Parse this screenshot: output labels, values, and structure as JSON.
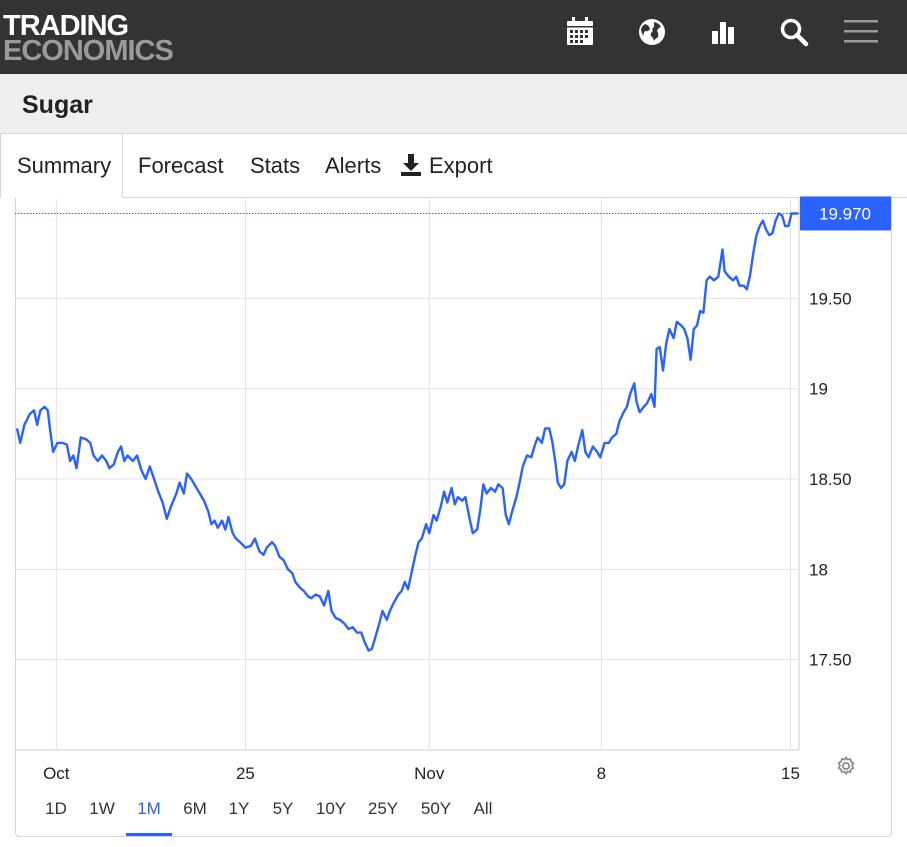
{
  "header": {
    "logo_line1": "TRADING",
    "logo_line2": "ECONOMICS",
    "icons": [
      "calendar-icon",
      "globe-icon",
      "bar-chart-icon",
      "search-icon",
      "menu-icon"
    ]
  },
  "page": {
    "title": "Sugar"
  },
  "tabs": [
    {
      "label": "Summary",
      "active": true
    },
    {
      "label": "Forecast",
      "active": false
    },
    {
      "label": "Stats",
      "active": false
    },
    {
      "label": "Alerts",
      "active": false
    },
    {
      "label": "Export",
      "active": false,
      "icon": "download-icon"
    }
  ],
  "ranges": [
    {
      "label": "1D",
      "active": false
    },
    {
      "label": "1W",
      "active": false
    },
    {
      "label": "1M",
      "active": true
    },
    {
      "label": "6M",
      "active": false
    },
    {
      "label": "1Y",
      "active": false
    },
    {
      "label": "5Y",
      "active": false
    },
    {
      "label": "10Y",
      "active": false
    },
    {
      "label": "25Y",
      "active": false
    },
    {
      "label": "50Y",
      "active": false
    },
    {
      "label": "All",
      "active": false
    }
  ],
  "colors": {
    "line": "#2962ff",
    "header_bg": "#333333",
    "price_tag_bg": "#2962ff"
  },
  "chart_data": {
    "type": "line",
    "title": "",
    "xlabel": "",
    "ylabel": "",
    "ylim": [
      17.0,
      20.05
    ],
    "grid": true,
    "y_ticks": [
      {
        "value": 19.5,
        "label": "19.50"
      },
      {
        "value": 19.0,
        "label": "19"
      },
      {
        "value": 18.5,
        "label": "18.50"
      },
      {
        "value": 18.0,
        "label": "18"
      },
      {
        "value": 17.5,
        "label": "17.50"
      }
    ],
    "x_ticks": [
      {
        "t": 3.7,
        "label": "Oct"
      },
      {
        "t": 21.5,
        "label": "25"
      },
      {
        "t": 38.8,
        "label": "Nov"
      },
      {
        "t": 55.0,
        "label": "8"
      },
      {
        "t": 72.8,
        "label": "15"
      }
    ],
    "last_price": {
      "value": 19.97,
      "label": "19.970"
    },
    "series": [
      {
        "values": [
          [
            0.0,
            18.78
          ],
          [
            0.3,
            18.7
          ],
          [
            0.7,
            18.8
          ],
          [
            1.2,
            18.86
          ],
          [
            1.6,
            18.88
          ],
          [
            1.9,
            18.8
          ],
          [
            2.2,
            18.88
          ],
          [
            2.6,
            18.9
          ],
          [
            2.9,
            18.88
          ],
          [
            3.1,
            18.78
          ],
          [
            3.4,
            18.65
          ],
          [
            3.8,
            18.7
          ],
          [
            4.3,
            18.7
          ],
          [
            4.7,
            18.69
          ],
          [
            5.0,
            18.6
          ],
          [
            5.3,
            18.63
          ],
          [
            5.6,
            18.56
          ],
          [
            6.0,
            18.73
          ],
          [
            6.5,
            18.72
          ],
          [
            6.9,
            18.7
          ],
          [
            7.2,
            18.63
          ],
          [
            7.6,
            18.6
          ],
          [
            8.0,
            18.63
          ],
          [
            8.4,
            18.6
          ],
          [
            8.7,
            18.56
          ],
          [
            9.1,
            18.58
          ],
          [
            9.5,
            18.65
          ],
          [
            9.8,
            18.68
          ],
          [
            10.1,
            18.6
          ],
          [
            10.4,
            18.63
          ],
          [
            10.9,
            18.6
          ],
          [
            11.3,
            18.63
          ],
          [
            11.7,
            18.55
          ],
          [
            12.1,
            18.5
          ],
          [
            12.5,
            18.57
          ],
          [
            12.9,
            18.5
          ],
          [
            13.3,
            18.43
          ],
          [
            13.7,
            18.37
          ],
          [
            14.1,
            18.28
          ],
          [
            14.5,
            18.35
          ],
          [
            15.0,
            18.42
          ],
          [
            15.3,
            18.48
          ],
          [
            15.7,
            18.42
          ],
          [
            16.0,
            18.53
          ],
          [
            16.4,
            18.5
          ],
          [
            16.8,
            18.46
          ],
          [
            17.2,
            18.42
          ],
          [
            17.6,
            18.38
          ],
          [
            18.0,
            18.32
          ],
          [
            18.3,
            18.25
          ],
          [
            18.6,
            18.27
          ],
          [
            18.9,
            18.23
          ],
          [
            19.3,
            18.27
          ],
          [
            19.6,
            18.22
          ],
          [
            19.9,
            18.29
          ],
          [
            20.3,
            18.2
          ],
          [
            20.6,
            18.17
          ],
          [
            21.0,
            18.15
          ],
          [
            21.5,
            18.12
          ],
          [
            22.0,
            18.13
          ],
          [
            22.4,
            18.17
          ],
          [
            22.8,
            18.1
          ],
          [
            23.2,
            18.08
          ],
          [
            23.5,
            18.12
          ],
          [
            24.0,
            18.15
          ],
          [
            24.3,
            18.13
          ],
          [
            24.7,
            18.07
          ],
          [
            25.1,
            18.05
          ],
          [
            25.5,
            18.0
          ],
          [
            25.9,
            17.98
          ],
          [
            26.2,
            17.93
          ],
          [
            26.6,
            17.9
          ],
          [
            27.0,
            17.88
          ],
          [
            27.4,
            17.85
          ],
          [
            27.7,
            17.84
          ],
          [
            28.1,
            17.86
          ],
          [
            28.5,
            17.85
          ],
          [
            28.9,
            17.8
          ],
          [
            29.3,
            17.88
          ],
          [
            29.6,
            17.77
          ],
          [
            30.0,
            17.73
          ],
          [
            30.4,
            17.72
          ],
          [
            30.8,
            17.7
          ],
          [
            31.2,
            17.67
          ],
          [
            31.6,
            17.68
          ],
          [
            32.0,
            17.65
          ],
          [
            32.4,
            17.65
          ],
          [
            32.7,
            17.6
          ],
          [
            33.1,
            17.55
          ],
          [
            33.4,
            17.56
          ],
          [
            33.7,
            17.62
          ],
          [
            34.1,
            17.7
          ],
          [
            34.4,
            17.77
          ],
          [
            34.8,
            17.72
          ],
          [
            35.1,
            17.77
          ],
          [
            35.5,
            17.82
          ],
          [
            35.9,
            17.86
          ],
          [
            36.2,
            17.88
          ],
          [
            36.5,
            17.93
          ],
          [
            36.8,
            17.89
          ],
          [
            37.2,
            18.0
          ],
          [
            37.5,
            18.08
          ],
          [
            37.8,
            18.15
          ],
          [
            38.1,
            18.17
          ],
          [
            38.5,
            18.25
          ],
          [
            38.8,
            18.2
          ],
          [
            39.2,
            18.3
          ],
          [
            39.5,
            18.27
          ],
          [
            39.9,
            18.35
          ],
          [
            40.2,
            18.43
          ],
          [
            40.5,
            18.37
          ],
          [
            40.9,
            18.45
          ],
          [
            41.2,
            18.36
          ],
          [
            41.5,
            18.4
          ],
          [
            41.9,
            18.38
          ],
          [
            42.2,
            18.4
          ],
          [
            42.6,
            18.28
          ],
          [
            42.9,
            18.2
          ],
          [
            43.3,
            18.22
          ],
          [
            43.6,
            18.33
          ],
          [
            43.9,
            18.47
          ],
          [
            44.2,
            18.42
          ],
          [
            44.6,
            18.45
          ],
          [
            45.0,
            18.43
          ],
          [
            45.3,
            18.47
          ],
          [
            45.7,
            18.45
          ],
          [
            46.0,
            18.3
          ],
          [
            46.3,
            18.25
          ],
          [
            46.6,
            18.32
          ],
          [
            47.0,
            18.4
          ],
          [
            47.3,
            18.48
          ],
          [
            47.6,
            18.57
          ],
          [
            48.0,
            18.63
          ],
          [
            48.4,
            18.62
          ],
          [
            48.7,
            18.68
          ],
          [
            49.0,
            18.73
          ],
          [
            49.4,
            18.7
          ],
          [
            49.7,
            18.78
          ],
          [
            50.1,
            18.78
          ],
          [
            50.4,
            18.7
          ],
          [
            50.7,
            18.58
          ],
          [
            50.9,
            18.48
          ],
          [
            51.2,
            18.45
          ],
          [
            51.5,
            18.47
          ],
          [
            51.8,
            18.6
          ],
          [
            52.2,
            18.65
          ],
          [
            52.5,
            18.6
          ],
          [
            52.8,
            18.68
          ],
          [
            53.2,
            18.77
          ],
          [
            53.5,
            18.65
          ],
          [
            53.8,
            18.62
          ],
          [
            54.2,
            18.68
          ],
          [
            54.6,
            18.65
          ],
          [
            54.9,
            18.62
          ],
          [
            55.3,
            18.7
          ],
          [
            55.7,
            18.7
          ],
          [
            56.0,
            18.73
          ],
          [
            56.4,
            18.75
          ],
          [
            56.7,
            18.82
          ],
          [
            57.1,
            18.87
          ],
          [
            57.4,
            18.9
          ],
          [
            57.7,
            18.97
          ],
          [
            58.1,
            19.03
          ],
          [
            58.3,
            18.93
          ],
          [
            58.6,
            18.87
          ],
          [
            59.0,
            18.9
          ],
          [
            59.3,
            18.92
          ],
          [
            59.7,
            18.97
          ],
          [
            60.0,
            18.9
          ],
          [
            60.2,
            19.22
          ],
          [
            60.5,
            19.23
          ],
          [
            60.8,
            19.1
          ],
          [
            61.1,
            19.25
          ],
          [
            61.4,
            19.33
          ],
          [
            61.8,
            19.28
          ],
          [
            62.1,
            19.37
          ],
          [
            62.5,
            19.35
          ],
          [
            62.8,
            19.33
          ],
          [
            63.1,
            19.28
          ],
          [
            63.4,
            19.16
          ],
          [
            63.7,
            19.33
          ],
          [
            64.0,
            19.35
          ],
          [
            64.3,
            19.43
          ],
          [
            64.6,
            19.42
          ],
          [
            64.9,
            19.6
          ],
          [
            65.2,
            19.62
          ],
          [
            65.6,
            19.6
          ],
          [
            66.0,
            19.62
          ],
          [
            66.4,
            19.77
          ],
          [
            66.6,
            19.65
          ],
          [
            67.0,
            19.62
          ],
          [
            67.4,
            19.6
          ],
          [
            67.7,
            19.62
          ],
          [
            68.0,
            19.57
          ],
          [
            68.4,
            19.57
          ],
          [
            68.7,
            19.55
          ],
          [
            69.0,
            19.63
          ],
          [
            69.3,
            19.75
          ],
          [
            69.6,
            19.85
          ],
          [
            69.9,
            19.9
          ],
          [
            70.2,
            19.93
          ],
          [
            70.5,
            19.88
          ],
          [
            70.8,
            19.85
          ],
          [
            71.1,
            19.86
          ],
          [
            71.4,
            19.93
          ],
          [
            71.7,
            19.97
          ],
          [
            72.0,
            19.96
          ],
          [
            72.3,
            19.9
          ],
          [
            72.6,
            19.9
          ],
          [
            72.9,
            19.97
          ],
          [
            73.2,
            19.97
          ],
          [
            73.5,
            19.97
          ]
        ]
      }
    ]
  }
}
